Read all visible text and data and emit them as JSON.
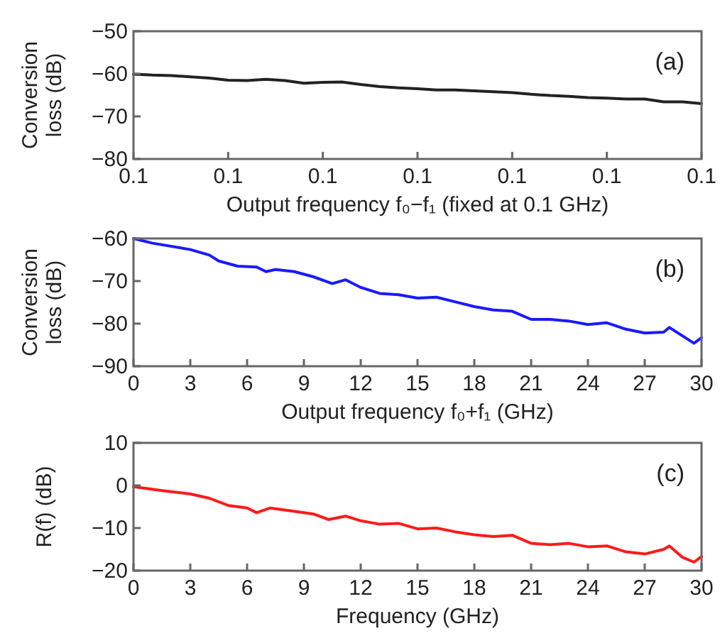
{
  "chart_data": [
    {
      "type": "line",
      "xlabel": "Output frequency f₀−f₁ (fixed at 0.1 GHz)",
      "ylabel": "Conversion loss (dB)",
      "annotations": [
        "(a)"
      ],
      "categories": [
        "0.1",
        null,
        null,
        null,
        null,
        "0.1",
        null,
        null,
        null,
        null,
        "0.1",
        null,
        null,
        null,
        null,
        "0.1",
        null,
        null,
        null,
        null,
        "0.1",
        null,
        null,
        null,
        null,
        "0.1",
        null,
        null,
        null,
        null,
        "0.1"
      ],
      "ylim": [
        -80,
        -50
      ],
      "yticks": [
        -80,
        -70,
        -60,
        -50
      ],
      "series": [
        {
          "color": "#222222",
          "values": [
            -60.1,
            -60.3,
            -60.4,
            -60.7,
            -61,
            -61.5,
            -61.6,
            -61.3,
            -61.6,
            -62.2,
            -62,
            -61.9,
            -62.5,
            -63,
            -63.3,
            -63.5,
            -63.8,
            -63.8,
            -64,
            -64.2,
            -64.4,
            -64.8,
            -65.1,
            -65.3,
            -65.6,
            -65.7,
            -65.9,
            -65.9,
            -66.6,
            -66.6,
            -67
          ]
        }
      ]
    },
    {
      "type": "line",
      "xlabel": "Output frequency f₀+f₁ (GHz)",
      "ylabel": "Conversion loss (dB)",
      "annotations": [
        "(b)"
      ],
      "xlim": [
        0,
        30
      ],
      "xticks": [
        0,
        3,
        6,
        9,
        12,
        15,
        18,
        21,
        24,
        27,
        30
      ],
      "ylim": [
        -90,
        -60
      ],
      "yticks": [
        -90,
        -80,
        -70,
        -60
      ],
      "x": [
        0,
        1,
        3,
        4,
        4.5,
        5.5,
        6.5,
        7,
        7.5,
        8.5,
        9.5,
        10.5,
        11.2,
        12,
        13,
        14,
        15,
        16,
        17,
        18,
        19,
        20,
        21,
        22,
        23,
        24,
        25,
        26,
        27,
        28,
        28.3,
        29,
        29.6,
        30
      ],
      "series": [
        {
          "color": "#1a1aff",
          "values": [
            -60,
            -61.1,
            -62.6,
            -63.9,
            -65.3,
            -66.5,
            -66.7,
            -67.8,
            -67.3,
            -67.8,
            -69,
            -70.6,
            -69.7,
            -71.5,
            -72.9,
            -73.2,
            -74,
            -73.8,
            -74.9,
            -76,
            -76.8,
            -77.1,
            -79,
            -79,
            -79.4,
            -80.2,
            -79.8,
            -81.3,
            -82.2,
            -82,
            -80.9,
            -82.9,
            -84.6,
            -83.3
          ]
        }
      ]
    },
    {
      "type": "line",
      "xlabel": "Frequency (GHz)",
      "ylabel": "R(f) (dB)",
      "annotations": [
        "(c)"
      ],
      "xlim": [
        0,
        30
      ],
      "xticks": [
        0,
        3,
        6,
        9,
        12,
        15,
        18,
        21,
        24,
        27,
        30
      ],
      "ylim": [
        -20,
        10
      ],
      "yticks": [
        -20,
        -10,
        0,
        10
      ],
      "x": [
        0,
        1.5,
        3,
        4,
        5,
        6,
        6.5,
        7.2,
        8.5,
        9.5,
        10.3,
        11.2,
        12,
        13,
        14,
        15,
        16,
        17,
        18,
        19,
        20,
        21,
        22,
        23,
        24,
        25,
        26,
        27,
        28,
        28.3,
        29,
        29.6,
        30
      ],
      "series": [
        {
          "color": "#ff1a1a",
          "values": [
            -0.3,
            -1.2,
            -2,
            -3,
            -4.7,
            -5.3,
            -6.4,
            -5.3,
            -6.1,
            -6.7,
            -8,
            -7.2,
            -8.3,
            -9.1,
            -8.9,
            -10.2,
            -10,
            -10.9,
            -11.6,
            -12,
            -11.7,
            -13.6,
            -13.9,
            -13.6,
            -14.4,
            -14.2,
            -15.6,
            -16.1,
            -15,
            -14.2,
            -16.9,
            -18,
            -16.7
          ]
        }
      ]
    }
  ]
}
